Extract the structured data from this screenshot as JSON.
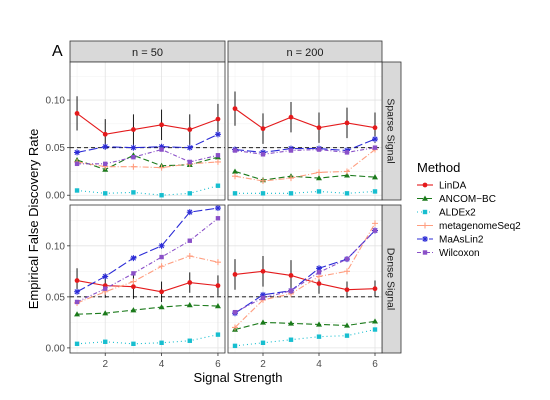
{
  "chart_data": {
    "type": "line",
    "panel_tag": "A",
    "title": "",
    "xlabel": "Signal Strength",
    "ylabel": "Empirical False Discovery Rate",
    "x": [
      1,
      2,
      3,
      4,
      5,
      6
    ],
    "xlim": [
      0.75,
      6.25
    ],
    "ylim": [
      -0.005,
      0.14
    ],
    "x_ticks": [
      2,
      4,
      6
    ],
    "y_ticks": [
      0.0,
      0.05,
      0.1
    ],
    "y_tick_labels": [
      "0.00",
      "0.05",
      "0.10"
    ],
    "reference_line": 0.05,
    "grid": true,
    "facet_columns": [
      "n = 50",
      "n = 200"
    ],
    "facet_rows": [
      "Sparse Signal",
      "Dense Signal"
    ],
    "legend": {
      "title": "Method",
      "position": "right",
      "entries": [
        "LinDA",
        "ANCOM−BC",
        "ALDEx2",
        "metagenomeSeq2",
        "MaAsLin2",
        "Wilcoxon"
      ]
    },
    "series_style": [
      {
        "name": "LinDA",
        "color": "#e41a1c",
        "dash": "none",
        "marker": "circle"
      },
      {
        "name": "ANCOM−BC",
        "color": "#1b7a1b",
        "dash": "6,3",
        "marker": "triangle"
      },
      {
        "name": "ALDEx2",
        "color": "#17becf",
        "dash": "1,3",
        "marker": "square"
      },
      {
        "name": "metagenomeSeq2",
        "color": "#ff9e80",
        "dash": "6,2,1,2",
        "marker": "cross"
      },
      {
        "name": "MaAsLin2",
        "color": "#2b2bd6",
        "dash": "9,3",
        "marker": "star"
      },
      {
        "name": "Wilcoxon",
        "color": "#8a50c8",
        "dash": "4,2,1,2",
        "marker": "square"
      }
    ],
    "panels": [
      {
        "col": "n = 50",
        "row": "Sparse Signal",
        "series": [
          {
            "name": "LinDA",
            "values": [
              0.086,
              0.064,
              0.069,
              0.074,
              0.069,
              0.08
            ],
            "err": [
              0.018,
              0.016,
              0.016,
              0.016,
              0.016,
              0.016
            ]
          },
          {
            "name": "ANCOM−BC",
            "values": [
              0.037,
              0.027,
              0.042,
              0.031,
              0.032,
              0.04
            ]
          },
          {
            "name": "ALDEx2",
            "values": [
              0.005,
              0.002,
              0.003,
              0.0,
              0.002,
              0.01
            ]
          },
          {
            "name": "metagenomeSeq2",
            "values": [
              0.035,
              0.03,
              0.03,
              0.029,
              0.033,
              0.035
            ]
          },
          {
            "name": "MaAsLin2",
            "values": [
              0.045,
              0.051,
              0.05,
              0.051,
              0.05,
              0.064
            ]
          },
          {
            "name": "Wilcoxon",
            "values": [
              0.033,
              0.033,
              0.04,
              0.048,
              0.035,
              0.042
            ]
          }
        ]
      },
      {
        "col": "n = 200",
        "row": "Sparse Signal",
        "series": [
          {
            "name": "LinDA",
            "values": [
              0.091,
              0.07,
              0.082,
              0.071,
              0.076,
              0.071
            ],
            "err": [
              0.018,
              0.016,
              0.016,
              0.016,
              0.016,
              0.016
            ]
          },
          {
            "name": "ANCOM−BC",
            "values": [
              0.025,
              0.016,
              0.02,
              0.018,
              0.021,
              0.019
            ]
          },
          {
            "name": "ALDEx2",
            "values": [
              0.002,
              0.002,
              0.002,
              0.004,
              0.002,
              0.004
            ]
          },
          {
            "name": "metagenomeSeq2",
            "values": [
              0.02,
              0.015,
              0.018,
              0.024,
              0.025,
              0.048
            ]
          },
          {
            "name": "MaAsLin2",
            "values": [
              0.048,
              0.045,
              0.049,
              0.049,
              0.047,
              0.059
            ]
          },
          {
            "name": "Wilcoxon",
            "values": [
              0.047,
              0.043,
              0.047,
              0.048,
              0.045,
              0.05
            ]
          }
        ]
      },
      {
        "col": "n = 50",
        "row": "Dense Signal",
        "series": [
          {
            "name": "LinDA",
            "values": [
              0.066,
              0.061,
              0.06,
              0.055,
              0.064,
              0.061
            ],
            "err": [
              0.012,
              0.012,
              0.012,
              0.01,
              0.01,
              0.01
            ]
          },
          {
            "name": "ANCOM−BC",
            "values": [
              0.033,
              0.034,
              0.037,
              0.04,
              0.042,
              0.041
            ]
          },
          {
            "name": "ALDEx2",
            "values": [
              0.004,
              0.006,
              0.004,
              0.005,
              0.007,
              0.013
            ]
          },
          {
            "name": "metagenomeSeq2",
            "values": [
              0.044,
              0.055,
              0.065,
              0.08,
              0.09,
              0.084
            ]
          },
          {
            "name": "MaAsLin2",
            "values": [
              0.055,
              0.07,
              0.088,
              0.1,
              0.133,
              0.137
            ]
          },
          {
            "name": "Wilcoxon",
            "values": [
              0.045,
              0.058,
              0.073,
              0.089,
              0.105,
              0.127
            ]
          }
        ]
      },
      {
        "col": "n = 200",
        "row": "Dense Signal",
        "series": [
          {
            "name": "LinDA",
            "values": [
              0.072,
              0.075,
              0.071,
              0.063,
              0.057,
              0.058
            ],
            "err": [
              0.015,
              0.015,
              0.015,
              0.01,
              0.008,
              0.008
            ]
          },
          {
            "name": "ANCOM−BC",
            "values": [
              0.018,
              0.025,
              0.024,
              0.023,
              0.022,
              0.026
            ]
          },
          {
            "name": "ALDEx2",
            "values": [
              0.002,
              0.005,
              0.008,
              0.011,
              0.012,
              0.018
            ]
          },
          {
            "name": "metagenomeSeq2",
            "values": [
              0.02,
              0.047,
              0.053,
              0.07,
              0.075,
              0.122
            ]
          },
          {
            "name": "MaAsLin2",
            "values": [
              0.034,
              0.052,
              0.056,
              0.078,
              0.087,
              0.115
            ]
          },
          {
            "name": "Wilcoxon",
            "values": [
              0.035,
              0.049,
              0.056,
              0.074,
              0.087,
              0.115
            ]
          }
        ]
      }
    ]
  }
}
